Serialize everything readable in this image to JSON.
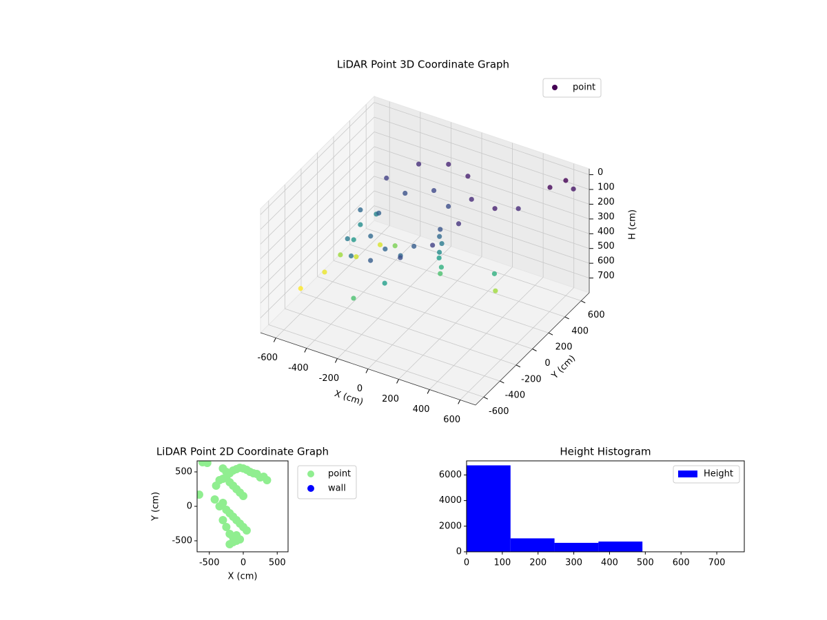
{
  "chart_data": [
    {
      "type": "scatter3d",
      "title": "LiDAR Point 3D Coordinate Graph",
      "xlabel": "X (cm)",
      "ylabel": "Y (cm)",
      "zlabel": "H (cm)",
      "xlim": [
        -700,
        700
      ],
      "ylim": [
        -700,
        700
      ],
      "zlim": [
        800,
        -40
      ],
      "xticks": [
        -600,
        -400,
        -200,
        0,
        200,
        400,
        600
      ],
      "yticks": [
        -600,
        -400,
        -200,
        0,
        200,
        400,
        600
      ],
      "zticks": [
        0,
        100,
        200,
        300,
        400,
        500,
        600,
        700
      ],
      "colormap": "viridis",
      "legend": "upper right",
      "grid": true,
      "series": [
        {
          "name": "point",
          "color": "#440154",
          "x": [
            220,
            177,
            60,
            -100,
            -260,
            -377,
            -420,
            -377,
            -260,
            -100,
            60,
            177,
            -420,
            -400,
            -380,
            100,
            41,
            -100,
            -241,
            -300,
            -241,
            -100,
            41,
            95,
            105,
            100,
            90,
            110,
            100,
            -650,
            -600,
            -500,
            -450,
            -550,
            -300,
            550,
            600,
            650,
            450,
            350,
            400,
            380,
            -50,
            0,
            -200
          ],
          "y": [
            0,
            240,
            416,
            480,
            416,
            240,
            0,
            -240,
            -416,
            -480,
            -416,
            -240,
            0,
            -120,
            120,
            0,
            212,
            300,
            212,
            0,
            -212,
            -300,
            -212,
            0,
            10,
            -10,
            5,
            -5,
            0,
            -300,
            -100,
            100,
            300,
            0,
            200,
            500,
            600,
            600,
            300,
            200,
            100,
            150,
            -400,
            -300,
            -500
          ],
          "values": [
            120,
            100,
            80,
            90,
            110,
            150,
            250,
            300,
            280,
            220,
            180,
            150,
            350,
            380,
            330,
            200,
            180,
            170,
            190,
            230,
            250,
            240,
            220,
            250,
            300,
            350,
            400,
            450,
            500,
            700,
            680,
            650,
            660,
            600,
            560,
            30,
            20,
            60,
            100,
            80,
            450,
            600,
            400,
            250,
            500
          ]
        }
      ]
    },
    {
      "type": "scatter",
      "title": "LiDAR Point 2D Coordinate Graph",
      "xlabel": "X (cm)",
      "ylabel": "Y (cm)",
      "xlim": [
        -680,
        660
      ],
      "ylim": [
        -660,
        660
      ],
      "xticks": [
        -500,
        0,
        500
      ],
      "yticks": [
        -500,
        0,
        500
      ],
      "legend": "outside right",
      "series": [
        {
          "name": "point",
          "color": "#90ee90",
          "x": [
            -600,
            -530,
            -650,
            -300,
            -250,
            -200,
            -150,
            -100,
            -50,
            0,
            50,
            100,
            150,
            200,
            250,
            300,
            -400,
            -350,
            -300,
            -250,
            -200,
            -150,
            -100,
            -50,
            0,
            -350,
            -300,
            -250,
            -200,
            -150,
            -100,
            -50,
            0,
            50,
            -300,
            -250,
            -200,
            -150,
            -100,
            -50,
            -200,
            -150,
            -100,
            350,
            -420
          ],
          "y": [
            640,
            630,
            170,
            550,
            500,
            480,
            520,
            540,
            560,
            550,
            530,
            500,
            480,
            470,
            420,
            430,
            300,
            380,
            400,
            420,
            350,
            300,
            250,
            200,
            150,
            0,
            50,
            -50,
            -100,
            -150,
            -200,
            -250,
            -300,
            -350,
            -200,
            -300,
            -400,
            -450,
            -500,
            -480,
            -550,
            -520,
            -420,
            380,
            100
          ]
        },
        {
          "name": "wall",
          "color": "#0000ff",
          "x": [],
          "y": []
        }
      ]
    },
    {
      "type": "histogram",
      "title": "Height Histogram",
      "bins": [
        0,
        123,
        246,
        369,
        492,
        615,
        738
      ],
      "xlim": [
        0,
        777
      ],
      "ylim": [
        0,
        7100
      ],
      "xticks": [
        0,
        100,
        200,
        300,
        400,
        500,
        600,
        700
      ],
      "yticks": [
        0,
        2000,
        4000,
        6000
      ],
      "legend": "upper right",
      "series": [
        {
          "name": "Height",
          "color": "#0000ff",
          "values": [
            6750,
            1050,
            700,
            800,
            15,
            10
          ]
        }
      ]
    }
  ]
}
